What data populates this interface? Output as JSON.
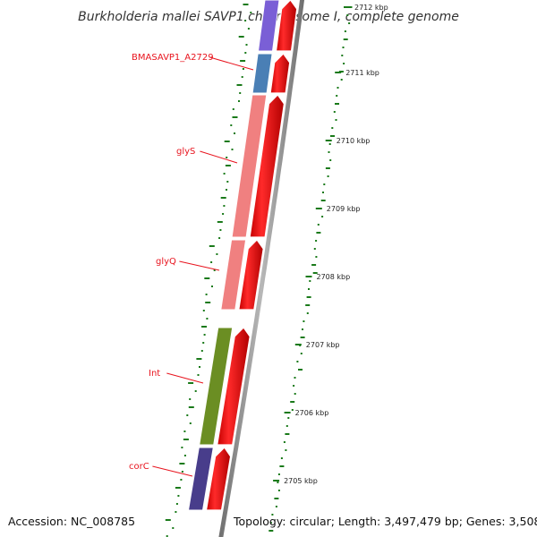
{
  "title": "Burkholderia mallei SAVP1 chromosome I, complete genome",
  "footer": {
    "accession": "Accession: NC_008785",
    "topology": "Topology: circular; Length: 3,497,479 bp; Genes: 3,508"
  },
  "position_scale": {
    "unit": "kbp",
    "ticks": [
      {
        "label": "2712 kbp",
        "value": 2712
      },
      {
        "label": "2711 kbp",
        "value": 2711
      },
      {
        "label": "2710 kbp",
        "value": 2710
      },
      {
        "label": "2709 kbp",
        "value": 2709
      },
      {
        "label": "2708 kbp",
        "value": 2708
      },
      {
        "label": "2707 kbp",
        "value": 2707
      },
      {
        "label": "2706 kbp",
        "value": 2706
      },
      {
        "label": "2705 kbp",
        "value": 2705
      }
    ]
  },
  "genes": [
    {
      "name": "",
      "color": "#7a5fd6",
      "label_color": "#e8141e"
    },
    {
      "name": "BMASAVP1_A2729",
      "color": "#4a7fb5",
      "label_color": "#e8141e"
    },
    {
      "name": "glyS",
      "color": "#f08080",
      "label_color": "#e8141e"
    },
    {
      "name": "glyQ",
      "color": "#f08080",
      "label_color": "#e8141e"
    },
    {
      "name": "Int",
      "color": "#6b8e23",
      "label_color": "#e8141e"
    },
    {
      "name": "corC",
      "color": "#483d8b",
      "label_color": "#e8141e"
    }
  ],
  "cds_color": "#ff0000",
  "backbone_color": "#8a8a8a",
  "gc_dots_color": "#1a7a1a"
}
